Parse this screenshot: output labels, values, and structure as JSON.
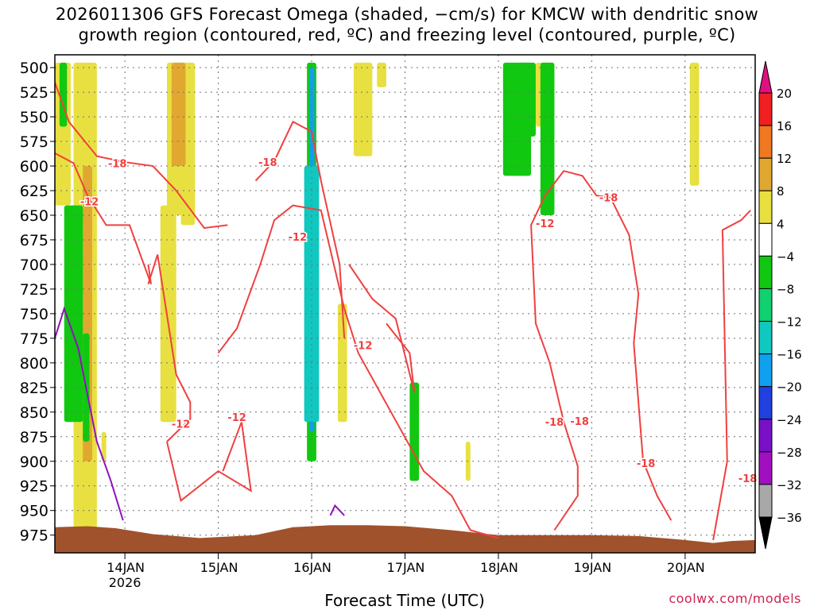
{
  "title": {
    "line1": "2026011306 GFS Forecast Omega (shaded, −cm/s) for KMCW with dendritic snow",
    "line2": "growth region (contoured, red, ºC) and freezing level (contoured, purple, ºC)"
  },
  "credit": "coolwx.com/models",
  "chart_data": {
    "type": "heatmap",
    "title": "2026011306 GFS Forecast Omega (shaded, −cm/s) for KMCW with dendritic snow growth region (contoured, red, ºC) and freezing level (contoured, purple, ºC)",
    "xlabel": "Forecast Time (UTC)",
    "ylabel": "",
    "x_ticks": [
      "14JAN",
      "15JAN",
      "16JAN",
      "17JAN",
      "18JAN",
      "19JAN",
      "20JAN"
    ],
    "x_year_label": "2026",
    "y_ticks": [
      500,
      525,
      550,
      575,
      600,
      625,
      650,
      675,
      700,
      725,
      750,
      775,
      800,
      825,
      850,
      875,
      900,
      925,
      950,
      975
    ],
    "ylim": [
      487,
      993
    ],
    "x_range_days": [
      13.25,
      20.75
    ],
    "colorbar": {
      "levels": [
        20,
        16,
        12,
        8,
        4,
        -4,
        -8,
        -12,
        -16,
        -20,
        -24,
        -28,
        -32,
        -36
      ],
      "colors": [
        "#f02020",
        "#f07820",
        "#e0a830",
        "#e8e040",
        "#ffffff",
        "#10c810",
        "#10d070",
        "#10c8c0",
        "#10a0f0",
        "#2040e0",
        "#7810c8",
        "#a010c0",
        "#a8a8a8",
        "#000000"
      ],
      "top_arrow_color": "#e01080",
      "bottom_arrow_color": "#000000"
    },
    "dgz_labels": [
      "-18",
      "-12",
      "-12",
      "-18",
      "-12",
      "-12",
      "-12",
      "-12",
      "-18",
      "-18",
      "-18",
      "-18",
      "-18"
    ],
    "dgz_label_positions": [
      [
        13.92,
        597
      ],
      [
        13.62,
        636
      ],
      [
        14.6,
        862
      ],
      [
        15.53,
        596
      ],
      [
        15.85,
        672
      ],
      [
        15.2,
        855
      ],
      [
        16.55,
        782
      ],
      [
        18.5,
        658
      ],
      [
        19.18,
        632
      ],
      [
        18.87,
        859
      ],
      [
        19.58,
        902
      ],
      [
        20.67,
        917
      ],
      [
        18.6,
        860
      ]
    ],
    "dgz_contour": [
      [
        [
          13.25,
          587
        ],
        [
          13.45,
          597
        ],
        [
          13.6,
          630
        ],
        [
          13.8,
          660
        ],
        [
          14.05,
          660
        ],
        [
          14.28,
          720
        ],
        [
          14.25,
          700
        ]
      ],
      [
        [
          13.25,
          515
        ],
        [
          13.4,
          555
        ],
        [
          13.7,
          590
        ],
        [
          14.0,
          596
        ],
        [
          14.3,
          600
        ],
        [
          14.55,
          625
        ],
        [
          14.85,
          663
        ],
        [
          15.1,
          660
        ]
      ],
      [
        [
          15.4,
          615
        ],
        [
          15.6,
          595
        ],
        [
          15.8,
          555
        ],
        [
          16.0,
          565
        ],
        [
          16.1,
          615
        ],
        [
          16.3,
          700
        ],
        [
          16.35,
          775
        ]
      ],
      [
        [
          14.45,
          880
        ],
        [
          14.7,
          857
        ],
        [
          14.7,
          840
        ],
        [
          14.55,
          812
        ],
        [
          14.35,
          690
        ],
        [
          14.25,
          720
        ]
      ],
      [
        [
          14.45,
          880
        ],
        [
          14.6,
          940
        ],
        [
          15.0,
          910
        ],
        [
          15.35,
          930
        ],
        [
          15.25,
          860
        ],
        [
          15.05,
          910
        ]
      ],
      [
        [
          15.0,
          790
        ],
        [
          15.2,
          765
        ],
        [
          15.45,
          700
        ],
        [
          15.6,
          655
        ],
        [
          15.8,
          640
        ],
        [
          16.1,
          645
        ],
        [
          16.35,
          745
        ],
        [
          16.5,
          790
        ]
      ],
      [
        [
          16.5,
          790
        ],
        [
          16.85,
          850
        ],
        [
          17.2,
          910
        ],
        [
          17.5,
          935
        ],
        [
          17.7,
          970
        ],
        [
          18.0,
          978
        ]
      ],
      [
        [
          16.4,
          700
        ],
        [
          16.65,
          735
        ],
        [
          16.9,
          755
        ],
        [
          17.1,
          830
        ],
        [
          17.05,
          790
        ],
        [
          16.8,
          760
        ]
      ],
      [
        [
          18.6,
          970
        ],
        [
          18.85,
          935
        ],
        [
          18.85,
          905
        ],
        [
          18.7,
          860
        ],
        [
          18.55,
          800
        ],
        [
          18.4,
          760
        ],
        [
          18.35,
          660
        ],
        [
          18.5,
          630
        ],
        [
          18.7,
          605
        ],
        [
          18.9,
          610
        ],
        [
          19.05,
          630
        ],
        [
          19.2,
          632
        ],
        [
          19.4,
          670
        ],
        [
          19.5,
          730
        ],
        [
          19.45,
          780
        ],
        [
          19.55,
          900
        ],
        [
          19.7,
          935
        ],
        [
          19.85,
          960
        ]
      ],
      [
        [
          20.3,
          980
        ],
        [
          20.45,
          900
        ],
        [
          20.4,
          665
        ],
        [
          20.6,
          655
        ],
        [
          20.7,
          645
        ]
      ]
    ],
    "freezing_level_contour": [
      [
        [
          13.25,
          775
        ],
        [
          13.35,
          745
        ],
        [
          13.5,
          785
        ],
        [
          13.7,
          880
        ],
        [
          13.85,
          920
        ],
        [
          13.98,
          960
        ]
      ],
      [
        [
          16.2,
          955
        ],
        [
          16.25,
          945
        ],
        [
          16.35,
          955
        ]
      ]
    ]
  },
  "legend": {
    "colorbar_labels": [
      "20",
      "16",
      "12",
      "8",
      "4",
      "−4",
      "−8",
      "−12",
      "−16",
      "−20",
      "−24",
      "−28",
      "−32",
      "−36"
    ]
  }
}
